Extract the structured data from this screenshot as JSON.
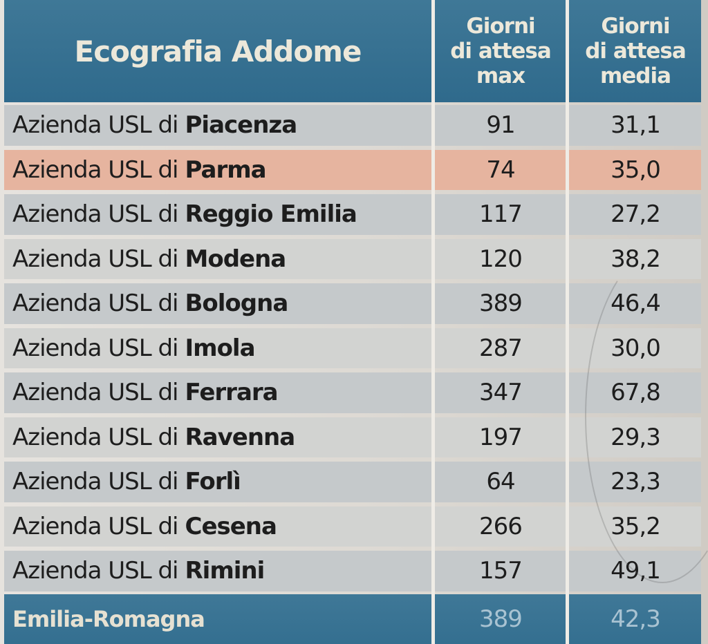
{
  "table": {
    "title": "Ecografia Addome",
    "col_max": [
      "Giorni",
      "di attesa",
      "max"
    ],
    "col_avg": [
      "Giorni",
      "di attesa",
      "media"
    ],
    "prefix": "Azienda USL di",
    "rows": [
      {
        "city": "Piacenza",
        "max": "91",
        "avg": "31,1"
      },
      {
        "city": "Parma",
        "max": "74",
        "avg": "35,0"
      },
      {
        "city": "Reggio Emilia",
        "max": "117",
        "avg": "27,2"
      },
      {
        "city": "Modena",
        "max": "120",
        "avg": "38,2"
      },
      {
        "city": "Bologna",
        "max": "389",
        "avg": "46,4"
      },
      {
        "city": "Imola",
        "max": "287",
        "avg": "30,0"
      },
      {
        "city": "Ferrara",
        "max": "347",
        "avg": "67,8"
      },
      {
        "city": "Ravenna",
        "max": "197",
        "avg": "29,3"
      },
      {
        "city": "Forlì",
        "max": "64",
        "avg": "23,3"
      },
      {
        "city": "Cesena",
        "max": "266",
        "avg": "35,2"
      },
      {
        "city": "Rimini",
        "max": "157",
        "avg": "49,1"
      }
    ],
    "total": {
      "label": "Emilia-Romagna",
      "max": "389",
      "avg": "42,3"
    }
  },
  "colors": {
    "header": "#2f6a8c",
    "highlight_row": "#e6b49f",
    "row": "#c5c9cb"
  }
}
